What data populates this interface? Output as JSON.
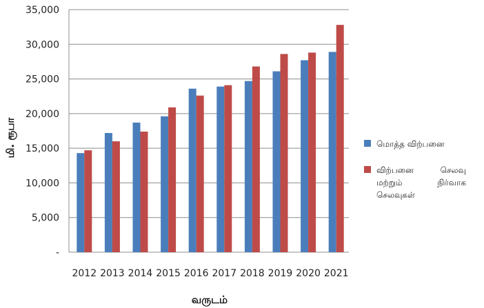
{
  "chart_data": {
    "type": "bar",
    "categories": [
      "2012",
      "2013",
      "2014",
      "2015",
      "2016",
      "2017",
      "2018",
      "2019",
      "2020",
      "2021"
    ],
    "series": [
      {
        "name": "மொத்த விற்பனை",
        "color": "#4a7ebb",
        "values": [
          14300,
          17200,
          18700,
          19600,
          23600,
          23900,
          24700,
          26100,
          27700,
          28900
        ]
      },
      {
        "name": "விற்பனை செலவு மற்றும் நிர்வாக செலவுகள்",
        "color": "#be4b48",
        "values": [
          14700,
          16000,
          17400,
          20900,
          22600,
          24100,
          26800,
          28600,
          28800,
          32800
        ]
      }
    ],
    "ylim": [
      0,
      35000
    ],
    "yticks": [
      {
        "value": 0,
        "label": "-"
      },
      {
        "value": 5000,
        "label": "5,000"
      },
      {
        "value": 10000,
        "label": "10,000"
      },
      {
        "value": 15000,
        "label": "15,000"
      },
      {
        "value": 20000,
        "label": "20,000"
      },
      {
        "value": 25000,
        "label": "25,000"
      },
      {
        "value": 30000,
        "label": "30,000"
      },
      {
        "value": 35000,
        "label": "35,000"
      }
    ],
    "ylabel": "மி. ரூபா",
    "xlabel": "வருடம்",
    "grid": true,
    "legend_position": "right"
  }
}
